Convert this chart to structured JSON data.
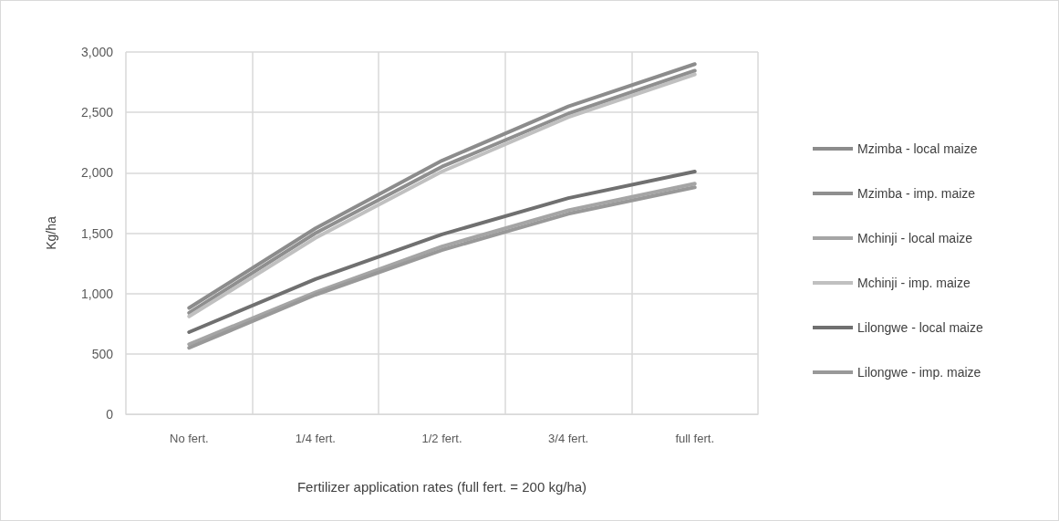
{
  "chart_data": {
    "type": "line",
    "xlabel": "Fertilizer application rates (full fert. = 200 kg/ha)",
    "ylabel": "Kg/ha",
    "categories": [
      "No fert.",
      "1/4 fert.",
      "1/2 fert.",
      "3/4 fert.",
      "full fert."
    ],
    "series": [
      {
        "name": "Mzimba - local maize",
        "color": "#8c8c8c",
        "values": [
          880,
          1540,
          2100,
          2550,
          2900
        ]
      },
      {
        "name": "Mzimba - imp. maize",
        "color": "#8f8f8f",
        "values": [
          840,
          1500,
          2050,
          2490,
          2845
        ]
      },
      {
        "name": "Mchinji - local maize",
        "color": "#a5a5a5",
        "values": [
          580,
          1010,
          1390,
          1690,
          1910
        ]
      },
      {
        "name": "Mchinji - imp. maize",
        "color": "#c0c0c0",
        "values": [
          810,
          1460,
          2010,
          2460,
          2815
        ]
      },
      {
        "name": "Lilongwe - local maize",
        "color": "#707070",
        "values": [
          680,
          1120,
          1490,
          1790,
          2010
        ]
      },
      {
        "name": "Lilongwe - imp. maize",
        "color": "#999999",
        "values": [
          550,
          990,
          1360,
          1660,
          1880
        ]
      }
    ],
    "ylim": [
      0,
      3000
    ],
    "yticks": [
      0,
      500,
      {
        "value": 1000,
        "label": "1,000"
      },
      {
        "value": 1500,
        "label": "1,500"
      },
      {
        "value": 2000,
        "label": "2,000"
      },
      {
        "value": 2500,
        "label": "2,500"
      },
      {
        "value": 3000,
        "label": "3,000"
      }
    ],
    "grid": true,
    "legend": "right",
    "marker": "none",
    "line_style": "solid"
  }
}
